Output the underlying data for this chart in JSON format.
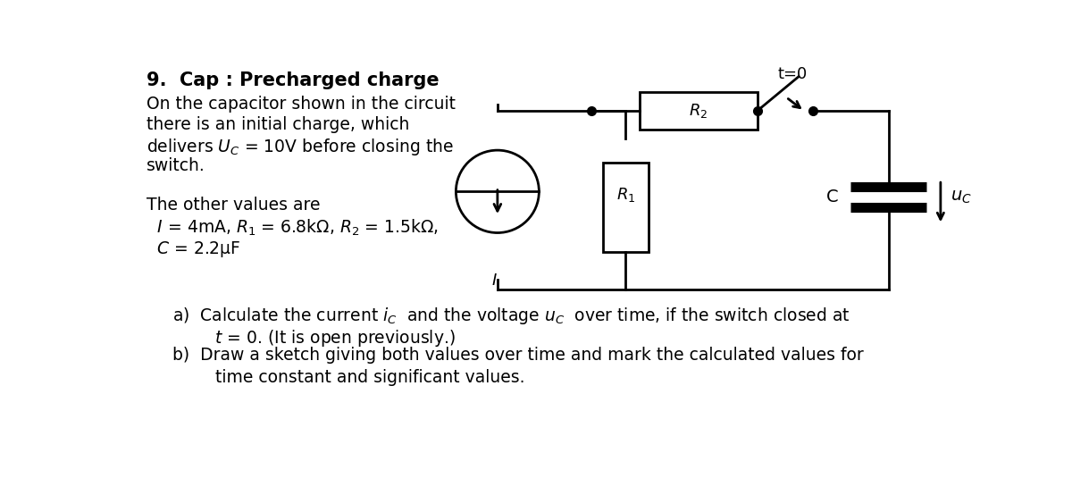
{
  "title": "9.  Cap : Precharged charge",
  "line1": "On the capacitor shown in the circuit",
  "line2": "there is an initial charge, which",
  "line3": "delivers $U_C$ = 10V before closing the",
  "line4": "switch.",
  "line5": "The other values are",
  "line6": "  $I$ = 4mA, $R_1$ = 6.8kΩ, $R_2$ = 1.5kΩ,",
  "line7": "  $C$ = 2.2µF",
  "qa": "a)  Calculate the current $i_C$  and the voltage $u_C$  over time, if the switch closed at",
  "qb": "        $t$ = 0. (It is open previously.)",
  "qc": "b)  Draw a sketch giving both values over time and mark the calculated values for",
  "qd": "        time constant and significant values.",
  "bg_color": "#ffffff",
  "text_color": "#000000",
  "lc": "#000000",
  "lw": 2.0
}
